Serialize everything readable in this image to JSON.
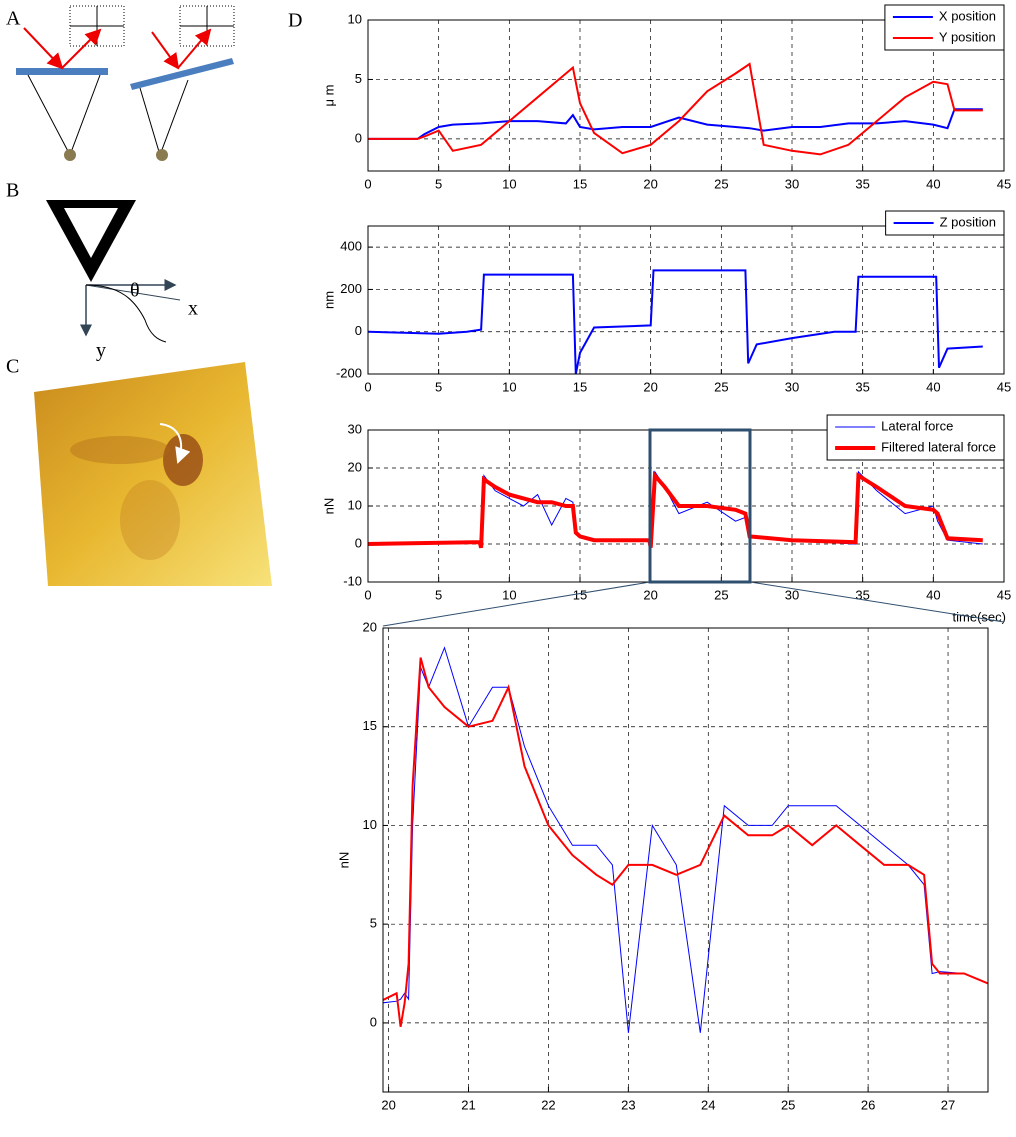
{
  "figure": {
    "panel_labels": [
      "A",
      "B",
      "C",
      "D"
    ],
    "diagram_labels": {
      "theta": "θ",
      "x": "x",
      "y": "y"
    }
  },
  "chart_data": [
    {
      "type": "line",
      "ylabel": "μ m",
      "x": [
        0,
        3.5,
        4,
        5,
        6,
        8,
        10,
        12,
        14,
        14.5,
        15,
        16,
        18,
        20,
        22,
        24,
        26,
        27,
        28,
        30,
        32,
        34,
        36,
        38,
        40,
        41,
        41.5,
        43.5
      ],
      "series": [
        {
          "name": "X position",
          "color": "#0000ff",
          "linewidth": 2,
          "values": [
            0,
            0,
            0.4,
            1,
            1.2,
            1.3,
            1.5,
            1.5,
            1.3,
            2,
            1,
            0.8,
            1,
            1,
            1.8,
            1.2,
            1,
            0.9,
            0.7,
            1,
            1,
            1.3,
            1.3,
            1.5,
            1.2,
            0.9,
            2.5,
            2.5
          ]
        },
        {
          "name": "Y position",
          "color": "#ff0000",
          "linewidth": 2,
          "values": [
            0,
            0,
            0.2,
            0.7,
            -1,
            -0.5,
            1.5,
            3.5,
            5.5,
            6,
            3,
            0.5,
            -1.2,
            -0.5,
            1.5,
            4,
            5.5,
            6.3,
            -0.5,
            -1,
            -1.3,
            -0.5,
            1.5,
            3.5,
            4.8,
            4.6,
            2.4,
            2.4
          ]
        }
      ],
      "xlim": [
        0,
        45
      ],
      "ylim": [
        -2.7,
        10
      ],
      "xticks": [
        0,
        5,
        10,
        15,
        20,
        25,
        30,
        35,
        40,
        45
      ],
      "yticks": [
        0,
        5,
        10
      ],
      "grid": true,
      "legend": "upper right"
    },
    {
      "type": "line",
      "ylabel": "nm",
      "x": [
        0,
        5,
        7,
        8,
        8.2,
        14.5,
        14.7,
        15,
        16,
        20,
        20.2,
        26.7,
        26.9,
        27.5,
        30,
        33,
        34.5,
        34.7,
        40.2,
        40.4,
        41,
        43.5
      ],
      "series": [
        {
          "name": "Z position",
          "color": "#0000ff",
          "linewidth": 2,
          "values": [
            0,
            -10,
            0,
            10,
            270,
            270,
            -200,
            -100,
            20,
            30,
            290,
            290,
            -150,
            -60,
            -30,
            0,
            0,
            260,
            260,
            -170,
            -80,
            -70
          ]
        }
      ],
      "xlim": [
        0,
        45
      ],
      "ylim": [
        -200,
        500
      ],
      "xticks": [
        0,
        5,
        10,
        15,
        20,
        25,
        30,
        35,
        40,
        45
      ],
      "yticks": [
        -200,
        0,
        200,
        400
      ],
      "grid": true,
      "legend": "upper right"
    },
    {
      "type": "line",
      "ylabel": "nN",
      "xlabel": "time(sec)",
      "x": [
        0,
        7.9,
        8,
        8.2,
        9,
        10,
        11,
        12,
        13,
        14,
        14.5,
        14.7,
        15,
        16,
        19.9,
        20,
        20.3,
        21,
        22,
        24,
        26,
        26.7,
        27,
        30,
        34.4,
        34.5,
        34.7,
        36,
        38,
        40,
        40.3,
        41,
        43.5
      ],
      "series": [
        {
          "name": "Lateral force",
          "color": "#0000ff",
          "linewidth": 1,
          "values": [
            0,
            0.5,
            -1,
            18,
            14,
            12,
            10,
            13,
            5,
            12,
            11,
            3,
            2,
            1,
            1,
            -1,
            19,
            15,
            8,
            11,
            6,
            7,
            2,
            1,
            0,
            0,
            19,
            14,
            8,
            10,
            6,
            1,
            0
          ]
        },
        {
          "name": "Filtered lateral force",
          "color": "#ff0000",
          "linewidth": 4,
          "values": [
            0,
            0.5,
            -1,
            17,
            15,
            13,
            12,
            11,
            11,
            10,
            10,
            3,
            2,
            1,
            1,
            -1,
            18,
            15,
            10,
            10,
            9,
            8,
            2,
            1,
            0.5,
            0.5,
            18,
            15,
            10,
            9,
            8,
            1.5,
            1
          ]
        }
      ],
      "xlim": [
        0,
        45
      ],
      "ylim": [
        -10,
        30
      ],
      "xticks": [
        0,
        5,
        10,
        15,
        20,
        25,
        30,
        35,
        40,
        45
      ],
      "yticks": [
        -10,
        0,
        10,
        20,
        30
      ],
      "grid": true,
      "legend": "upper right"
    },
    {
      "type": "line",
      "ylabel": "nN",
      "x": [
        19.9,
        20.1,
        20.15,
        20.2,
        20.25,
        20.3,
        20.4,
        20.5,
        20.7,
        21,
        21.3,
        21.5,
        21.7,
        22,
        22.3,
        22.6,
        22.8,
        23,
        23.3,
        23.6,
        23.9,
        24.2,
        24.5,
        24.8,
        25,
        25.3,
        25.6,
        25.9,
        26.2,
        26.5,
        26.7,
        26.8,
        26.9,
        27.2,
        27.5
      ],
      "series": [
        {
          "color": "#0000ff",
          "linewidth": 1,
          "values": [
            1,
            1.1,
            1.2,
            1.5,
            1.2,
            10,
            18,
            17,
            19,
            15,
            17,
            17,
            14,
            11,
            9,
            9,
            8,
            -0.5,
            10,
            8,
            -0.5,
            11,
            10,
            10,
            11,
            11,
            11,
            10,
            9,
            8,
            7,
            2.5,
            2.6,
            2.5,
            2
          ]
        },
        {
          "color": "#ff0000",
          "linewidth": 2,
          "values": [
            1.1,
            1.5,
            -0.2,
            1,
            3,
            12,
            18.5,
            17,
            16,
            15,
            15.3,
            17,
            13,
            10,
            8.5,
            7.5,
            7,
            8,
            8,
            7.5,
            8,
            10.5,
            9.5,
            9.5,
            10,
            9,
            10,
            9,
            8,
            8,
            7.5,
            3,
            2.5,
            2.5,
            2
          ]
        }
      ],
      "xlim": [
        19.93,
        27.5
      ],
      "ylim": [
        -3.5,
        20
      ],
      "xticks": [
        20,
        21,
        22,
        23,
        24,
        25,
        26,
        27
      ],
      "yticks": [
        0,
        5,
        10,
        15,
        20
      ],
      "grid": true
    }
  ]
}
